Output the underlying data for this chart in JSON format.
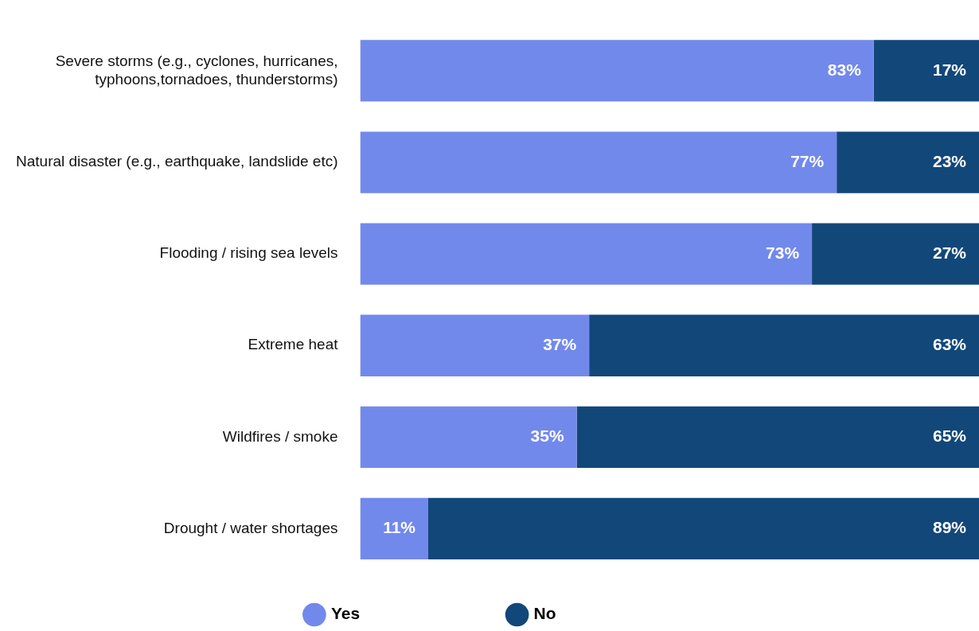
{
  "chart_data": {
    "type": "bar",
    "orientation": "horizontal",
    "stacked": true,
    "categories": [
      "Severe storms (e.g., cyclones, hurricanes, typhoons,tornadoes, thunderstorms)",
      "Natural disaster (e.g., earthquake, landslide etc)",
      "Flooding / rising sea levels",
      "Extreme heat",
      "Wildfires / smoke",
      "Drought / water shortages"
    ],
    "series": [
      {
        "name": "Yes",
        "color": "#7289ec",
        "values": [
          83,
          77,
          73,
          37,
          35,
          11
        ],
        "value_labels": [
          "83%",
          "77%",
          "73%",
          "37%",
          "35%",
          "11%"
        ]
      },
      {
        "name": "No",
        "color": "#12477a",
        "values": [
          17,
          23,
          27,
          63,
          65,
          89
        ],
        "value_labels": [
          "17%",
          "23%",
          "27%",
          "63%",
          "65%",
          "89%"
        ]
      }
    ],
    "xlim": [
      0,
      100
    ],
    "tick_labels": "y",
    "legend": "bottom"
  }
}
